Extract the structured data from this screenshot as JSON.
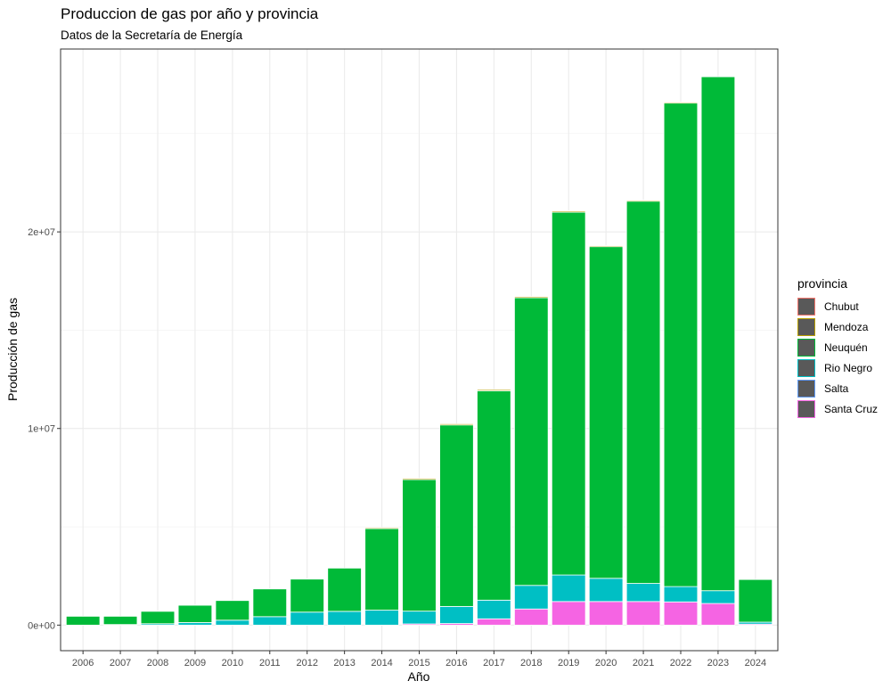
{
  "chart_data": {
    "type": "bar",
    "stacked": true,
    "title": "Produccion de gas por año y provincia",
    "subtitle": "Datos de la Secretaría de Energía",
    "xlabel": "Año",
    "ylabel": "Producción de gas",
    "categories": [
      "2006",
      "2007",
      "2008",
      "2009",
      "2010",
      "2011",
      "2012",
      "2013",
      "2014",
      "2015",
      "2016",
      "2017",
      "2018",
      "2019",
      "2020",
      "2021",
      "2022",
      "2023",
      "2024"
    ],
    "ylim": [
      -1300000,
      29300000
    ],
    "yticks": [
      0,
      10000000,
      20000000
    ],
    "ytick_labels": [
      "0e+00",
      "1e+07",
      "2e+07"
    ],
    "grid": true,
    "legend_title": "provincia",
    "legend_position": "right",
    "series": [
      {
        "name": "Santa Cruz",
        "color": "#F564E3",
        "values": [
          0,
          0,
          0,
          0,
          0,
          0,
          0,
          0,
          0,
          60000,
          80000,
          320000,
          820000,
          1200000,
          1200000,
          1200000,
          1180000,
          1100000,
          50000
        ]
      },
      {
        "name": "Salta",
        "color": "#619CFF",
        "values": [
          0,
          0,
          0,
          0,
          0,
          0,
          0,
          0,
          0,
          0,
          0,
          0,
          0,
          0,
          0,
          0,
          0,
          0,
          0
        ]
      },
      {
        "name": "Rio Negro",
        "color": "#00BFC4",
        "values": [
          0,
          30000,
          70000,
          130000,
          250000,
          430000,
          660000,
          700000,
          760000,
          650000,
          870000,
          950000,
          1200000,
          1350000,
          1180000,
          920000,
          780000,
          650000,
          100000
        ]
      },
      {
        "name": "Neuquén",
        "color": "#00BA38",
        "values": [
          450000,
          420000,
          630000,
          880000,
          1000000,
          1410000,
          1680000,
          2200000,
          4150000,
          6690000,
          9230000,
          10650000,
          14630000,
          18450000,
          16870000,
          19440000,
          24590000,
          26140000,
          2170000
        ]
      },
      {
        "name": "Mendoza",
        "color": "#B79F00",
        "values": [
          0,
          0,
          0,
          0,
          0,
          0,
          0,
          0,
          50000,
          60000,
          60000,
          60000,
          60000,
          60000,
          50000,
          50000,
          50000,
          0,
          0
        ]
      },
      {
        "name": "Chubut",
        "color": "#F8766D",
        "values": [
          0,
          0,
          0,
          0,
          0,
          0,
          0,
          0,
          0,
          0,
          0,
          0,
          0,
          0,
          0,
          0,
          0,
          0,
          0
        ]
      }
    ]
  },
  "legend_items": [
    {
      "label": "Chubut",
      "color": "#F8766D"
    },
    {
      "label": "Mendoza",
      "color": "#B79F00"
    },
    {
      "label": "Neuquén",
      "color": "#00BA38"
    },
    {
      "label": "Rio Negro",
      "color": "#00BFC4"
    },
    {
      "label": "Salta",
      "color": "#619CFF"
    },
    {
      "label": "Santa Cruz",
      "color": "#F564E3"
    }
  ]
}
